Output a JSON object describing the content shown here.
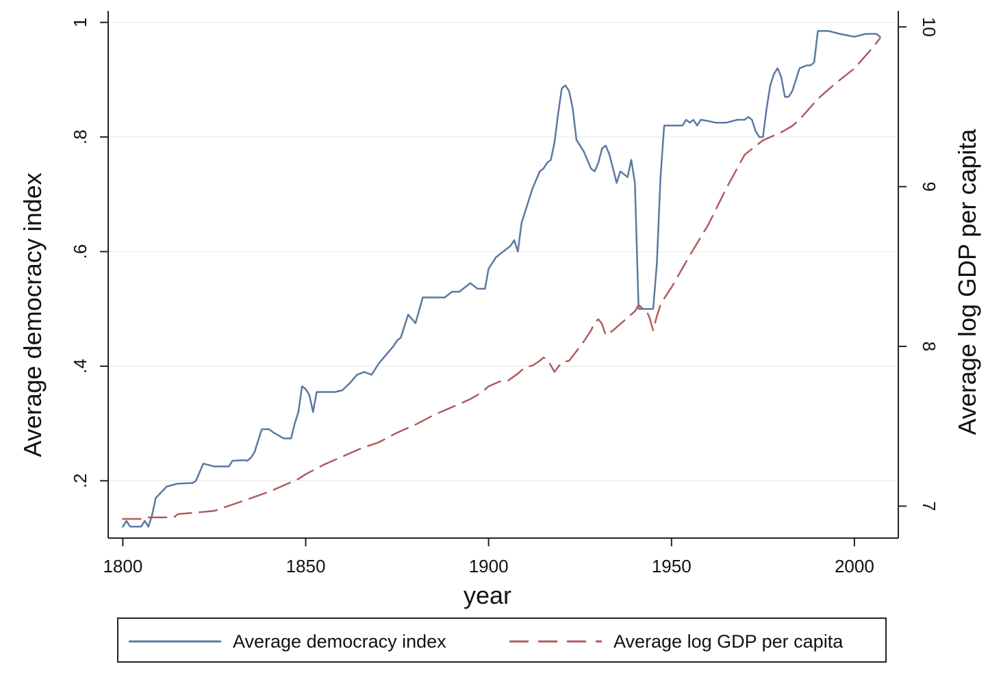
{
  "chart_data": {
    "type": "line",
    "xlabel": "year",
    "ylabel_left": "Average democracy index",
    "ylabel_right": "Average log GDP per capita",
    "x_ticks": [
      1800,
      1850,
      1900,
      1950,
      2000
    ],
    "x_tick_labels": [
      "1800",
      "1850",
      "1900",
      "1950",
      "2000"
    ],
    "y_left_ticks": [
      0.2,
      0.4,
      0.6,
      0.8,
      1.0
    ],
    "y_left_tick_labels": [
      ".2",
      ".4",
      ".6",
      ".8",
      "1"
    ],
    "y_right_ticks": [
      7,
      8,
      9,
      10
    ],
    "y_right_tick_labels": [
      "7",
      "8",
      "9",
      "10"
    ],
    "xlim": [
      1796,
      2012
    ],
    "ylim_left": [
      0.1,
      1.02
    ],
    "ylim_right": [
      6.8,
      10.1
    ],
    "grid": true,
    "legend_position": "bottom",
    "colors": {
      "democracy": "#5a78a0",
      "gdp": "#b05c5c"
    },
    "series": [
      {
        "name": "Average democracy index",
        "axis": "left",
        "style": "solid",
        "x": [
          1800,
          1801,
          1802,
          1803,
          1804,
          1805,
          1806,
          1807,
          1808,
          1809,
          1812,
          1815,
          1818,
          1819,
          1820,
          1822,
          1825,
          1828,
          1829,
          1830,
          1833,
          1834,
          1835,
          1836,
          1838,
          1840,
          1841,
          1844,
          1845,
          1846,
          1847,
          1848,
          1849,
          1850,
          1851,
          1852,
          1853,
          1856,
          1858,
          1860,
          1862,
          1864,
          1866,
          1868,
          1870,
          1872,
          1874,
          1875,
          1876,
          1877,
          1878,
          1880,
          1882,
          1885,
          1888,
          1890,
          1892,
          1895,
          1897,
          1898,
          1899,
          1900,
          1902,
          1905,
          1906,
          1907,
          1908,
          1909,
          1910,
          1912,
          1914,
          1915,
          1916,
          1917,
          1918,
          1919,
          1920,
          1921,
          1922,
          1923,
          1924,
          1925,
          1926,
          1927,
          1928,
          1929,
          1930,
          1931,
          1932,
          1933,
          1934,
          1935,
          1936,
          1937,
          1938,
          1939,
          1940,
          1941,
          1942,
          1943,
          1944,
          1945,
          1946,
          1947,
          1948,
          1949,
          1950,
          1951,
          1952,
          1953,
          1954,
          1955,
          1956,
          1957,
          1958,
          1960,
          1962,
          1965,
          1968,
          1969,
          1970,
          1971,
          1972,
          1973,
          1974,
          1975,
          1976,
          1977,
          1978,
          1979,
          1980,
          1981,
          1982,
          1983,
          1985,
          1987,
          1988,
          1989,
          1990,
          1993,
          1996,
          2000,
          2003,
          2005,
          2006,
          2007
        ],
        "y": [
          0.12,
          0.13,
          0.12,
          0.12,
          0.12,
          0.12,
          0.13,
          0.12,
          0.14,
          0.17,
          0.19,
          0.195,
          0.196,
          0.196,
          0.2,
          0.23,
          0.225,
          0.225,
          0.225,
          0.235,
          0.236,
          0.235,
          0.24,
          0.25,
          0.29,
          0.29,
          0.285,
          0.274,
          0.274,
          0.274,
          0.3,
          0.32,
          0.365,
          0.36,
          0.35,
          0.32,
          0.355,
          0.355,
          0.355,
          0.358,
          0.37,
          0.385,
          0.39,
          0.385,
          0.405,
          0.42,
          0.435,
          0.445,
          0.45,
          0.47,
          0.49,
          0.475,
          0.52,
          0.52,
          0.52,
          0.53,
          0.53,
          0.545,
          0.535,
          0.535,
          0.535,
          0.57,
          0.59,
          0.605,
          0.61,
          0.62,
          0.6,
          0.65,
          0.67,
          0.71,
          0.74,
          0.745,
          0.755,
          0.76,
          0.79,
          0.84,
          0.885,
          0.89,
          0.88,
          0.85,
          0.795,
          0.785,
          0.775,
          0.76,
          0.745,
          0.74,
          0.755,
          0.78,
          0.785,
          0.77,
          0.745,
          0.72,
          0.74,
          0.735,
          0.73,
          0.76,
          0.72,
          0.5,
          0.5,
          0.5,
          0.5,
          0.5,
          0.58,
          0.73,
          0.82,
          0.82,
          0.82,
          0.82,
          0.82,
          0.82,
          0.83,
          0.825,
          0.83,
          0.82,
          0.83,
          0.828,
          0.825,
          0.825,
          0.83,
          0.83,
          0.83,
          0.835,
          0.83,
          0.81,
          0.8,
          0.8,
          0.85,
          0.89,
          0.91,
          0.92,
          0.905,
          0.87,
          0.87,
          0.88,
          0.92,
          0.925,
          0.925,
          0.93,
          0.985,
          0.985,
          0.98,
          0.975,
          0.98,
          0.98,
          0.98,
          0.975
        ],
        "label": ""
      },
      {
        "name": "Average log GDP per capita",
        "axis": "right",
        "style": "dashed",
        "x": [
          1800,
          1802,
          1805,
          1807,
          1810,
          1812,
          1814,
          1815,
          1820,
          1825,
          1830,
          1835,
          1840,
          1845,
          1848,
          1850,
          1855,
          1860,
          1865,
          1870,
          1875,
          1880,
          1885,
          1890,
          1895,
          1898,
          1900,
          1903,
          1905,
          1908,
          1910,
          1912,
          1914,
          1915,
          1916,
          1917,
          1918,
          1919,
          1920,
          1922,
          1924,
          1926,
          1928,
          1929,
          1930,
          1931,
          1932,
          1934,
          1936,
          1938,
          1940,
          1941,
          1942,
          1943,
          1944,
          1945,
          1946,
          1947,
          1948,
          1950,
          1955,
          1960,
          1965,
          1970,
          1975,
          1980,
          1983,
          1985,
          1990,
          1995,
          2000,
          2005,
          2007
        ],
        "y": [
          6.92,
          6.92,
          6.92,
          6.93,
          6.93,
          6.93,
          6.93,
          6.95,
          6.96,
          6.97,
          7.01,
          7.05,
          7.09,
          7.14,
          7.17,
          7.2,
          7.26,
          7.31,
          7.36,
          7.4,
          7.46,
          7.51,
          7.57,
          7.62,
          7.67,
          7.71,
          7.75,
          7.78,
          7.78,
          7.83,
          7.87,
          7.88,
          7.91,
          7.93,
          7.92,
          7.88,
          7.84,
          7.87,
          7.9,
          7.91,
          7.97,
          8.03,
          8.1,
          8.15,
          8.17,
          8.14,
          8.07,
          8.1,
          8.14,
          8.18,
          8.22,
          8.26,
          8.24,
          8.23,
          8.18,
          8.1,
          8.19,
          8.26,
          8.3,
          8.37,
          8.57,
          8.76,
          8.99,
          9.2,
          9.29,
          9.34,
          9.38,
          9.42,
          9.55,
          9.65,
          9.74,
          9.87,
          9.93
        ],
        "label": ""
      }
    ]
  }
}
